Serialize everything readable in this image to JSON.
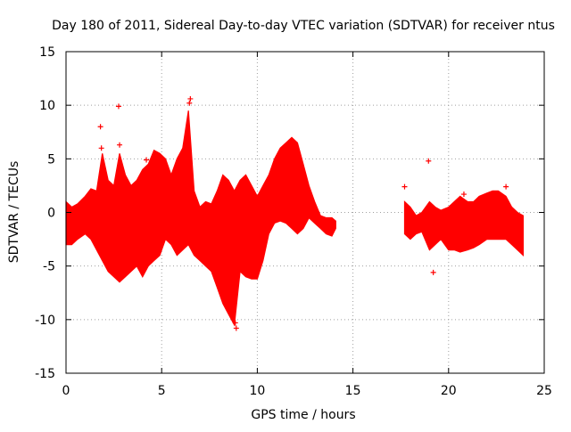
{
  "chart_data": {
    "type": "scatter",
    "title": "Day 180 of 2011, Sidereal Day-to-day VTEC variation (SDTVAR) for receiver ntus",
    "xlabel": "GPS time / hours",
    "ylabel": "SDTVAR / TECUs",
    "xlim": [
      0,
      25
    ],
    "ylim": [
      -15,
      15
    ],
    "xticks": [
      0,
      5,
      10,
      15,
      20,
      25
    ],
    "yticks": [
      -15,
      -10,
      -5,
      0,
      5,
      10,
      15
    ],
    "xtick_labels": [
      "0",
      "5",
      "10",
      "15",
      "20",
      "25"
    ],
    "ytick_labels": [
      "-15",
      "-10",
      "-5",
      "0",
      "5",
      "10",
      "15"
    ],
    "grid": true,
    "marker": "+",
    "color": "#ff0000",
    "series": [
      {
        "name": "ntus",
        "envelope": {
          "x": [
            0.0,
            0.3,
            0.6,
            1.0,
            1.3,
            1.6,
            1.9,
            2.2,
            2.5,
            2.8,
            3.1,
            3.4,
            3.7,
            4.0,
            4.3,
            4.6,
            4.9,
            5.2,
            5.5,
            5.8,
            6.1,
            6.4,
            6.7,
            7.0,
            7.3,
            7.6,
            7.9,
            8.2,
            8.5,
            8.8,
            9.1,
            9.4,
            9.7,
            10.0,
            10.3,
            10.6,
            10.9,
            11.2,
            11.5,
            11.8,
            12.1,
            12.4,
            12.7,
            13.0,
            13.3,
            13.6,
            13.9,
            14.1
          ],
          "upper": [
            1.0,
            0.5,
            0.8,
            1.5,
            2.2,
            2.0,
            5.5,
            3.0,
            2.5,
            5.5,
            3.5,
            2.5,
            3.0,
            4.0,
            4.5,
            5.8,
            5.5,
            5.0,
            3.5,
            5.0,
            6.0,
            9.5,
            2.0,
            0.5,
            1.0,
            0.8,
            2.0,
            3.5,
            3.0,
            2.0,
            3.0,
            3.5,
            2.5,
            1.5,
            2.5,
            3.5,
            5.0,
            6.0,
            6.5,
            7.0,
            6.5,
            4.5,
            2.5,
            1.0,
            -0.3,
            -0.5,
            -0.5,
            -0.8
          ],
          "lower": [
            -3.0,
            -3.0,
            -2.5,
            -2.0,
            -2.5,
            -3.5,
            -4.5,
            -5.5,
            -6.0,
            -6.5,
            -6.0,
            -5.5,
            -5.0,
            -6.0,
            -5.0,
            -4.5,
            -4.0,
            -2.5,
            -3.0,
            -4.0,
            -3.5,
            -3.0,
            -4.0,
            -4.5,
            -5.0,
            -5.5,
            -7.0,
            -8.5,
            -9.5,
            -10.5,
            -5.5,
            -6.0,
            -6.2,
            -6.2,
            -4.5,
            -2.0,
            -1.0,
            -0.8,
            -1.0,
            -1.5,
            -2.0,
            -1.5,
            -0.5,
            -1.0,
            -1.5,
            -2.0,
            -2.2,
            -1.5
          ]
        },
        "envelope2": {
          "x": [
            17.7,
            18.0,
            18.3,
            18.6,
            19.0,
            19.3,
            19.6,
            20.0,
            20.3,
            20.6,
            21.0,
            21.3,
            21.6,
            22.0,
            22.3,
            22.6,
            23.0,
            23.3,
            23.6,
            23.9
          ],
          "upper": [
            1.0,
            0.5,
            -0.3,
            0.0,
            1.0,
            0.5,
            0.2,
            0.5,
            1.0,
            1.5,
            1.0,
            1.0,
            1.5,
            1.8,
            2.0,
            2.0,
            1.5,
            0.5,
            0.0,
            -0.3
          ],
          "lower": [
            -2.0,
            -2.5,
            -2.0,
            -1.8,
            -3.5,
            -3.0,
            -2.5,
            -3.5,
            -3.5,
            -3.7,
            -3.5,
            -3.3,
            -3.0,
            -2.5,
            -2.5,
            -2.5,
            -2.5,
            -3.0,
            -3.5,
            -4.0
          ]
        },
        "outliers": {
          "x": [
            1.8,
            2.75,
            2.8,
            6.5,
            6.45,
            18.95,
            19.2,
            17.7,
            20.8,
            23.0,
            8.9,
            8.85,
            1.85,
            4.2
          ],
          "y": [
            8.0,
            9.9,
            6.3,
            10.6,
            10.2,
            4.8,
            -5.6,
            2.4,
            1.7,
            2.4,
            -10.8,
            -10.3,
            6.0,
            4.9
          ]
        }
      }
    ]
  }
}
